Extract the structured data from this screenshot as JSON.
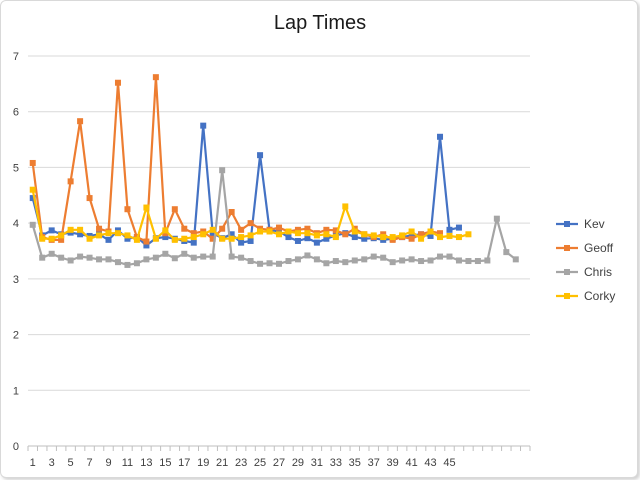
{
  "chart_data": {
    "type": "line",
    "title": "Lap Times",
    "xlabel": "",
    "ylabel": "",
    "ylim": [
      0,
      7
    ],
    "yticks": [
      0,
      1,
      2,
      3,
      4,
      5,
      6,
      7
    ],
    "xlim": [
      1,
      53
    ],
    "xtick_labels": [
      1,
      3,
      5,
      7,
      9,
      11,
      13,
      15,
      17,
      19,
      21,
      23,
      25,
      27,
      29,
      31,
      33,
      35,
      37,
      39,
      41,
      43,
      45
    ],
    "grid": true,
    "legend_position": "right",
    "series": [
      {
        "name": "Kev",
        "color": "#4472c4",
        "marker": "square",
        "values": [
          4.45,
          3.78,
          3.87,
          3.8,
          3.83,
          3.8,
          3.77,
          3.8,
          3.7,
          3.87,
          3.72,
          3.75,
          3.6,
          3.73,
          3.75,
          3.72,
          3.68,
          3.65,
          5.75,
          3.82,
          3.73,
          3.8,
          3.65,
          3.68,
          5.22,
          3.88,
          3.85,
          3.75,
          3.68,
          3.73,
          3.65,
          3.72,
          3.78,
          3.82,
          3.75,
          3.72,
          3.73,
          3.7,
          3.72,
          3.75,
          3.78,
          3.8,
          3.77,
          5.55,
          3.88,
          3.92
        ]
      },
      {
        "name": "Geoff",
        "color": "#ed7d31",
        "marker": "square",
        "values": [
          5.08,
          3.75,
          3.7,
          3.7,
          4.75,
          5.83,
          4.45,
          3.9,
          3.85,
          6.52,
          4.25,
          3.75,
          3.67,
          6.62,
          3.82,
          4.25,
          3.9,
          3.82,
          3.85,
          3.72,
          3.9,
          4.2,
          3.88,
          4.0,
          3.9,
          3.88,
          3.92,
          3.85,
          3.88,
          3.9,
          3.82,
          3.88,
          3.87,
          3.8,
          3.9,
          3.8,
          3.75,
          3.8,
          3.7,
          3.75,
          3.72,
          3.8,
          3.85,
          3.82
        ]
      },
      {
        "name": "Chris",
        "color": "#a5a5a5",
        "marker": "square",
        "values": [
          3.97,
          3.38,
          3.45,
          3.38,
          3.33,
          3.4,
          3.38,
          3.35,
          3.35,
          3.3,
          3.25,
          3.28,
          3.35,
          3.38,
          3.45,
          3.37,
          3.45,
          3.38,
          3.4,
          3.4,
          4.95,
          3.4,
          3.38,
          3.32,
          3.27,
          3.28,
          3.27,
          3.32,
          3.35,
          3.42,
          3.35,
          3.28,
          3.32,
          3.3,
          3.33,
          3.35,
          3.4,
          3.38,
          3.3,
          3.33,
          3.35,
          3.32,
          3.33,
          3.4,
          3.4,
          3.33,
          3.32,
          3.32,
          3.33,
          4.08,
          3.48,
          3.35
        ]
      },
      {
        "name": "Corky",
        "color": "#ffc000",
        "marker": "square",
        "values": [
          4.6,
          3.72,
          3.72,
          3.78,
          3.88,
          3.88,
          3.72,
          3.78,
          3.82,
          3.82,
          3.78,
          3.7,
          4.28,
          3.72,
          3.87,
          3.7,
          3.72,
          3.75,
          3.8,
          3.88,
          3.72,
          3.72,
          3.75,
          3.78,
          3.85,
          3.85,
          3.8,
          3.85,
          3.82,
          3.82,
          3.78,
          3.8,
          3.75,
          4.3,
          3.85,
          3.8,
          3.78,
          3.75,
          3.75,
          3.78,
          3.85,
          3.72,
          3.85,
          3.75,
          3.77,
          3.75,
          3.8
        ]
      }
    ]
  }
}
